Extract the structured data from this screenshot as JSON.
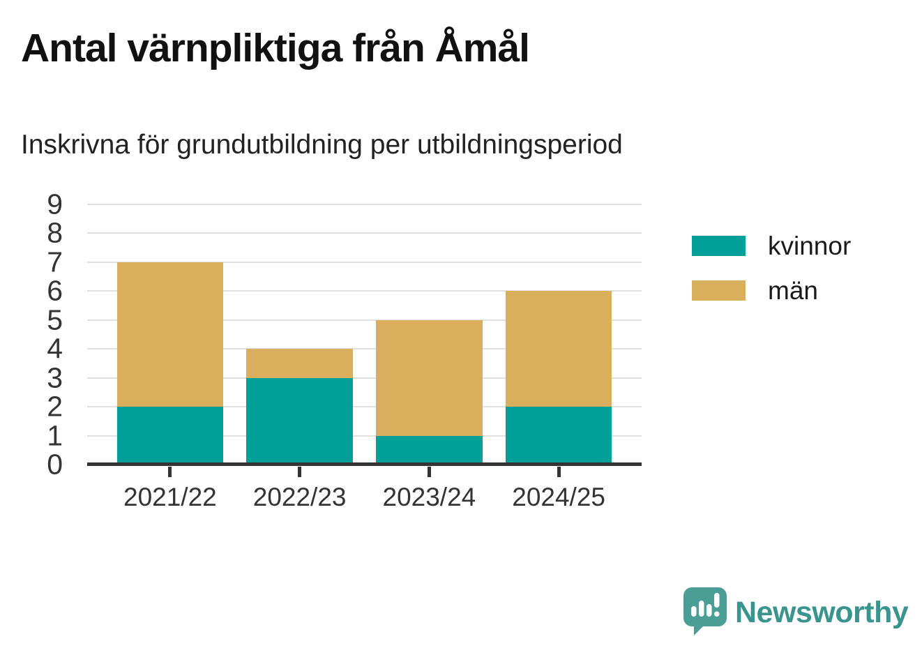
{
  "header": {
    "title": "Antal värnpliktiga från Åmål",
    "subtitle": "Inskrivna för grundutbildning per utbildningsperiod"
  },
  "chart_data": {
    "type": "bar",
    "stacked": true,
    "title": "Antal värnpliktiga från Åmål",
    "subtitle": "Inskrivna för grundutbildning per utbildningsperiod",
    "categories": [
      "2021/22",
      "2022/23",
      "2023/24",
      "2024/25"
    ],
    "series": [
      {
        "name": "kvinnor",
        "color": "#00a098",
        "values": [
          2,
          3,
          1,
          2
        ]
      },
      {
        "name": "män",
        "color": "#d9ae5c",
        "values": [
          5,
          1,
          4,
          4
        ]
      }
    ],
    "totals": [
      7,
      4,
      5,
      6
    ],
    "xlabel": "",
    "ylabel": "",
    "ylim": [
      0,
      9
    ],
    "yticks": [
      0,
      1,
      2,
      3,
      4,
      5,
      6,
      7,
      8,
      9
    ],
    "grid": true,
    "gridline_color": "#e0e0e0",
    "axis_color": "#333333",
    "legend_position": "right"
  },
  "branding": {
    "name": "Newsworthy",
    "icon": "newsworthy-logo-icon",
    "icon_color": "#4a9e96",
    "text_color": "#38948c"
  }
}
